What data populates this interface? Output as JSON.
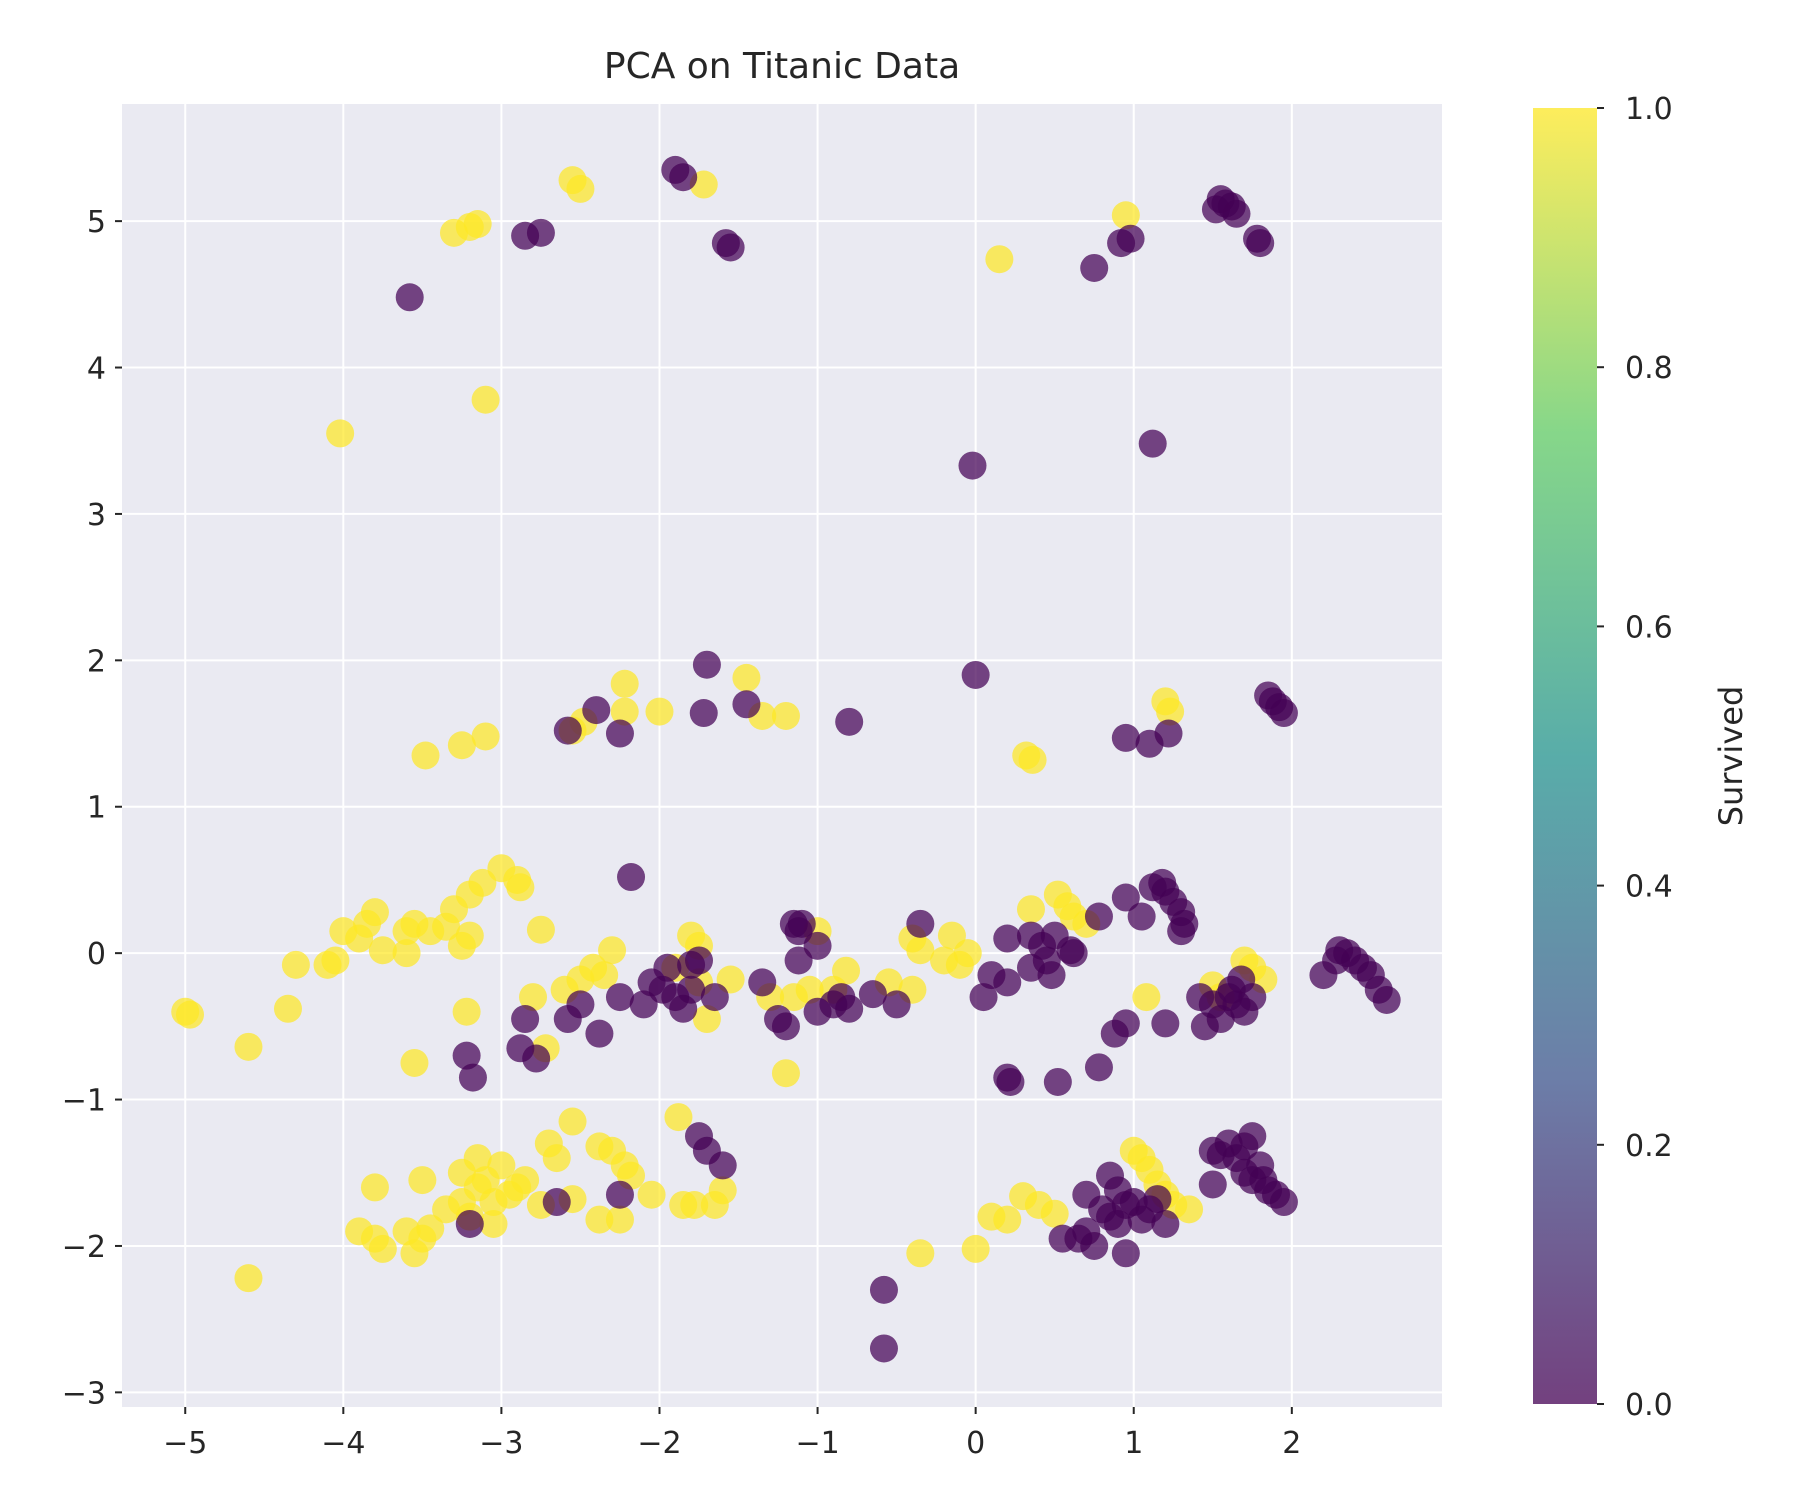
{
  "chart_data": {
    "type": "scatter",
    "title": "PCA on Titanic Data",
    "xlabel": "",
    "ylabel": "",
    "xlim": [
      -5.4,
      2.95
    ],
    "ylim": [
      -3.1,
      5.8
    ],
    "xticks": [
      -5,
      -4,
      -3,
      -2,
      -1,
      0,
      1,
      2
    ],
    "yticks": [
      -3,
      -2,
      -1,
      0,
      1,
      2,
      3,
      4,
      5
    ],
    "xtick_labels": [
      "−5",
      "−4",
      "−3",
      "−2",
      "−1",
      "0",
      "1",
      "2"
    ],
    "ytick_labels": [
      "−3",
      "−2",
      "−1",
      "0",
      "1",
      "2",
      "3",
      "4",
      "5"
    ],
    "grid": true,
    "background": "#eaeaf2",
    "colormap": "viridis",
    "colormap_stops": [
      "#440154",
      "#3b528b",
      "#21918c",
      "#5ec962",
      "#fde725"
    ],
    "colors": {
      "not_survived": "#440154",
      "survived": "#fde725"
    },
    "colorbar": {
      "label": "Survived",
      "range": [
        0.0,
        1.0
      ],
      "ticks": [
        0.0,
        0.2,
        0.4,
        0.6,
        0.8,
        1.0
      ],
      "tick_labels": [
        "0.0",
        "0.2",
        "0.4",
        "0.6",
        "0.8",
        "1.0"
      ]
    },
    "series": [
      {
        "survived": 1,
        "points": [
          [
            -2.55,
            5.28
          ],
          [
            -2.5,
            5.22
          ],
          [
            -1.72,
            5.25
          ],
          [
            -3.3,
            4.92
          ],
          [
            -3.2,
            4.96
          ],
          [
            -3.15,
            4.98
          ],
          [
            0.15,
            4.74
          ],
          [
            0.95,
            5.04
          ],
          [
            -4.02,
            3.55
          ],
          [
            -3.1,
            3.78
          ],
          [
            -3.48,
            1.35
          ],
          [
            -3.25,
            1.42
          ],
          [
            -3.1,
            1.48
          ],
          [
            -2.55,
            1.52
          ],
          [
            -2.48,
            1.58
          ],
          [
            -2.22,
            1.84
          ],
          [
            -2.22,
            1.65
          ],
          [
            -2.0,
            1.65
          ],
          [
            -1.45,
            1.88
          ],
          [
            -1.35,
            1.62
          ],
          [
            -1.2,
            1.62
          ],
          [
            0.32,
            1.35
          ],
          [
            0.36,
            1.32
          ],
          [
            1.2,
            1.72
          ],
          [
            1.23,
            1.65
          ],
          [
            -3.0,
            0.58
          ],
          [
            -2.9,
            0.5
          ],
          [
            -2.88,
            0.45
          ],
          [
            -3.12,
            0.48
          ],
          [
            -3.2,
            0.4
          ],
          [
            -3.3,
            0.3
          ],
          [
            -3.25,
            0.05
          ],
          [
            -3.2,
            0.12
          ],
          [
            -3.55,
            0.2
          ],
          [
            -3.6,
            0.15
          ],
          [
            -3.8,
            0.28
          ],
          [
            -3.85,
            0.2
          ],
          [
            -3.9,
            0.1
          ],
          [
            -4.0,
            0.15
          ],
          [
            -4.05,
            -0.05
          ],
          [
            -4.1,
            -0.08
          ],
          [
            -3.75,
            0.02
          ],
          [
            -3.6,
            0.0
          ],
          [
            -3.45,
            0.15
          ],
          [
            -3.35,
            0.18
          ],
          [
            -2.75,
            0.16
          ],
          [
            -4.3,
            -0.08
          ],
          [
            -4.35,
            -0.38
          ],
          [
            -5.0,
            -0.4
          ],
          [
            -4.97,
            -0.42
          ],
          [
            -4.6,
            -0.64
          ],
          [
            -3.22,
            -0.4
          ],
          [
            -3.55,
            -0.75
          ],
          [
            -2.8,
            -0.3
          ],
          [
            -2.6,
            -0.25
          ],
          [
            -2.5,
            -0.18
          ],
          [
            -2.42,
            -0.1
          ],
          [
            -2.3,
            0.02
          ],
          [
            -2.35,
            -0.15
          ],
          [
            -2.72,
            -0.65
          ],
          [
            -1.8,
            0.12
          ],
          [
            -1.75,
            0.05
          ],
          [
            -1.9,
            -0.1
          ],
          [
            -1.75,
            -0.2
          ],
          [
            -1.7,
            -0.45
          ],
          [
            -1.55,
            -0.18
          ],
          [
            -1.3,
            -0.3
          ],
          [
            -1.15,
            -0.3
          ],
          [
            -1.05,
            -0.25
          ],
          [
            -1.0,
            0.15
          ],
          [
            -0.9,
            -0.25
          ],
          [
            -0.82,
            -0.12
          ],
          [
            -0.55,
            -0.2
          ],
          [
            -0.4,
            0.1
          ],
          [
            -0.35,
            0.02
          ],
          [
            -0.15,
            0.12
          ],
          [
            -0.2,
            -0.05
          ],
          [
            -0.1,
            -0.08
          ],
          [
            -0.05,
            0.0
          ],
          [
            -0.4,
            -0.25
          ],
          [
            -1.2,
            -0.82
          ],
          [
            0.35,
            0.3
          ],
          [
            0.52,
            0.4
          ],
          [
            0.58,
            0.32
          ],
          [
            0.62,
            0.25
          ],
          [
            0.7,
            0.2
          ],
          [
            1.08,
            -0.3
          ],
          [
            1.5,
            -0.22
          ],
          [
            1.55,
            -0.3
          ],
          [
            1.7,
            -0.05
          ],
          [
            1.75,
            -0.1
          ],
          [
            1.82,
            -0.18
          ],
          [
            -3.8,
            -1.6
          ],
          [
            -3.5,
            -1.55
          ],
          [
            -3.25,
            -1.5
          ],
          [
            -3.1,
            -1.55
          ],
          [
            -3.0,
            -1.45
          ],
          [
            -2.85,
            -1.55
          ],
          [
            -2.7,
            -1.3
          ],
          [
            -2.65,
            -1.4
          ],
          [
            -2.55,
            -1.15
          ],
          [
            -2.38,
            -1.32
          ],
          [
            -2.3,
            -1.35
          ],
          [
            -2.22,
            -1.45
          ],
          [
            -2.18,
            -1.52
          ],
          [
            -1.88,
            -1.12
          ],
          [
            -1.6,
            -1.62
          ],
          [
            -1.65,
            -1.72
          ],
          [
            -1.78,
            -1.72
          ],
          [
            -1.85,
            -1.72
          ],
          [
            -3.15,
            -1.6
          ],
          [
            -3.25,
            -1.7
          ],
          [
            -3.35,
            -1.75
          ],
          [
            -3.05,
            -1.7
          ],
          [
            -2.95,
            -1.65
          ],
          [
            -3.2,
            -1.8
          ],
          [
            -3.05,
            -1.85
          ],
          [
            -3.9,
            -1.9
          ],
          [
            -3.8,
            -1.95
          ],
          [
            -3.75,
            -2.02
          ],
          [
            -3.6,
            -1.9
          ],
          [
            -3.55,
            -2.05
          ],
          [
            -3.45,
            -1.88
          ],
          [
            -3.5,
            -1.95
          ],
          [
            -2.75,
            -1.72
          ],
          [
            -2.55,
            -1.68
          ],
          [
            -2.38,
            -1.82
          ],
          [
            -2.25,
            -1.82
          ],
          [
            -2.05,
            -1.65
          ],
          [
            -3.15,
            -1.4
          ],
          [
            -2.9,
            -1.6
          ],
          [
            -4.6,
            -2.22
          ],
          [
            -0.35,
            -2.05
          ],
          [
            0.0,
            -2.02
          ],
          [
            0.1,
            -1.8
          ],
          [
            0.2,
            -1.82
          ],
          [
            0.3,
            -1.66
          ],
          [
            0.4,
            -1.72
          ],
          [
            0.5,
            -1.78
          ],
          [
            1.0,
            -1.35
          ],
          [
            1.05,
            -1.4
          ],
          [
            1.1,
            -1.48
          ],
          [
            1.15,
            -1.58
          ],
          [
            1.2,
            -1.65
          ],
          [
            1.25,
            -1.72
          ],
          [
            1.35,
            -1.75
          ]
        ]
      },
      {
        "survived": 0,
        "points": [
          [
            -1.9,
            5.35
          ],
          [
            -1.85,
            5.3
          ],
          [
            -2.85,
            4.9
          ],
          [
            -2.75,
            4.92
          ],
          [
            -1.58,
            4.85
          ],
          [
            -1.55,
            4.82
          ],
          [
            -3.58,
            4.48
          ],
          [
            0.75,
            4.68
          ],
          [
            0.92,
            4.85
          ],
          [
            0.98,
            4.88
          ],
          [
            1.55,
            5.15
          ],
          [
            1.58,
            5.12
          ],
          [
            1.62,
            5.1
          ],
          [
            1.65,
            5.05
          ],
          [
            1.78,
            4.88
          ],
          [
            1.8,
            4.85
          ],
          [
            1.52,
            5.08
          ],
          [
            1.12,
            3.48
          ],
          [
            -0.02,
            3.33
          ],
          [
            -1.7,
            1.97
          ],
          [
            -1.72,
            1.64
          ],
          [
            -1.45,
            1.7
          ],
          [
            -2.4,
            1.66
          ],
          [
            -2.25,
            1.5
          ],
          [
            -2.58,
            1.52
          ],
          [
            -0.8,
            1.58
          ],
          [
            0.0,
            1.9
          ],
          [
            0.95,
            1.47
          ],
          [
            1.1,
            1.43
          ],
          [
            1.22,
            1.5
          ],
          [
            1.85,
            1.76
          ],
          [
            1.88,
            1.72
          ],
          [
            1.92,
            1.68
          ],
          [
            1.95,
            1.64
          ],
          [
            -2.18,
            0.52
          ],
          [
            -1.15,
            0.2
          ],
          [
            -1.12,
            0.15
          ],
          [
            -1.1,
            0.2
          ],
          [
            -1.0,
            0.05
          ],
          [
            -1.12,
            -0.05
          ],
          [
            -1.35,
            -0.2
          ],
          [
            -1.25,
            -0.45
          ],
          [
            -1.2,
            -0.5
          ],
          [
            -1.0,
            -0.4
          ],
          [
            -0.9,
            -0.35
          ],
          [
            -0.85,
            -0.3
          ],
          [
            -0.8,
            -0.38
          ],
          [
            -0.65,
            -0.28
          ],
          [
            -0.5,
            -0.35
          ],
          [
            -2.25,
            -0.3
          ],
          [
            -2.1,
            -0.35
          ],
          [
            -2.05,
            -0.2
          ],
          [
            -1.98,
            -0.25
          ],
          [
            -1.95,
            -0.1
          ],
          [
            -1.9,
            -0.3
          ],
          [
            -1.85,
            -0.38
          ],
          [
            -1.8,
            -0.25
          ],
          [
            -1.8,
            -0.08
          ],
          [
            -1.75,
            -0.05
          ],
          [
            -1.65,
            -0.3
          ],
          [
            -2.38,
            -0.55
          ],
          [
            -2.5,
            -0.35
          ],
          [
            -2.58,
            -0.45
          ],
          [
            -2.78,
            -0.72
          ],
          [
            -2.88,
            -0.65
          ],
          [
            -2.85,
            -0.45
          ],
          [
            -3.22,
            -0.7
          ],
          [
            -3.18,
            -0.85
          ],
          [
            -0.35,
            0.2
          ],
          [
            0.1,
            -0.15
          ],
          [
            0.2,
            -0.2
          ],
          [
            0.05,
            -0.3
          ],
          [
            0.2,
            0.1
          ],
          [
            0.35,
            0.12
          ],
          [
            0.42,
            0.05
          ],
          [
            0.45,
            -0.05
          ],
          [
            0.5,
            0.12
          ],
          [
            0.6,
            0.02
          ],
          [
            0.62,
            0.0
          ],
          [
            0.35,
            -0.1
          ],
          [
            0.48,
            -0.15
          ],
          [
            0.78,
            0.25
          ],
          [
            0.95,
            0.38
          ],
          [
            1.05,
            0.25
          ],
          [
            1.12,
            0.45
          ],
          [
            1.18,
            0.48
          ],
          [
            1.2,
            0.42
          ],
          [
            1.25,
            0.35
          ],
          [
            1.3,
            0.28
          ],
          [
            1.32,
            0.2
          ],
          [
            1.3,
            0.15
          ],
          [
            1.42,
            -0.3
          ],
          [
            1.5,
            -0.35
          ],
          [
            1.55,
            -0.45
          ],
          [
            1.6,
            -0.3
          ],
          [
            1.65,
            -0.35
          ],
          [
            1.7,
            -0.4
          ],
          [
            1.75,
            -0.3
          ],
          [
            1.62,
            -0.25
          ],
          [
            1.68,
            -0.18
          ],
          [
            1.45,
            -0.5
          ],
          [
            1.2,
            -0.48
          ],
          [
            0.88,
            -0.55
          ],
          [
            0.95,
            -0.48
          ],
          [
            0.78,
            -0.78
          ],
          [
            0.52,
            -0.88
          ],
          [
            0.2,
            -0.85
          ],
          [
            0.22,
            -0.88
          ],
          [
            2.2,
            -0.15
          ],
          [
            2.3,
            0.02
          ],
          [
            2.35,
            0.0
          ],
          [
            2.4,
            -0.05
          ],
          [
            2.45,
            -0.1
          ],
          [
            2.5,
            -0.15
          ],
          [
            2.55,
            -0.25
          ],
          [
            2.6,
            -0.32
          ],
          [
            2.28,
            -0.05
          ],
          [
            1.5,
            -1.35
          ],
          [
            1.55,
            -1.38
          ],
          [
            1.6,
            -1.3
          ],
          [
            1.65,
            -1.4
          ],
          [
            1.7,
            -1.32
          ],
          [
            1.75,
            -1.25
          ],
          [
            1.8,
            -1.45
          ],
          [
            1.82,
            -1.55
          ],
          [
            1.85,
            -1.62
          ],
          [
            1.9,
            -1.65
          ],
          [
            1.95,
            -1.7
          ],
          [
            1.7,
            -1.5
          ],
          [
            1.75,
            -1.55
          ],
          [
            1.5,
            -1.58
          ],
          [
            0.7,
            -1.65
          ],
          [
            0.8,
            -1.75
          ],
          [
            0.85,
            -1.8
          ],
          [
            0.9,
            -1.85
          ],
          [
            0.95,
            -1.72
          ],
          [
            1.0,
            -1.7
          ],
          [
            1.05,
            -1.82
          ],
          [
            1.1,
            -1.75
          ],
          [
            1.15,
            -1.68
          ],
          [
            1.2,
            -1.85
          ],
          [
            0.9,
            -1.62
          ],
          [
            0.85,
            -1.52
          ],
          [
            0.7,
            -1.9
          ],
          [
            0.65,
            -1.95
          ],
          [
            0.55,
            -1.95
          ],
          [
            0.75,
            -2.0
          ],
          [
            0.95,
            -2.05
          ],
          [
            -1.75,
            -1.25
          ],
          [
            -1.7,
            -1.35
          ],
          [
            -1.6,
            -1.45
          ],
          [
            -2.25,
            -1.65
          ],
          [
            -2.65,
            -1.7
          ],
          [
            -3.2,
            -1.85
          ],
          [
            -0.58,
            -2.3
          ],
          [
            -0.58,
            -2.7
          ]
        ]
      }
    ]
  }
}
